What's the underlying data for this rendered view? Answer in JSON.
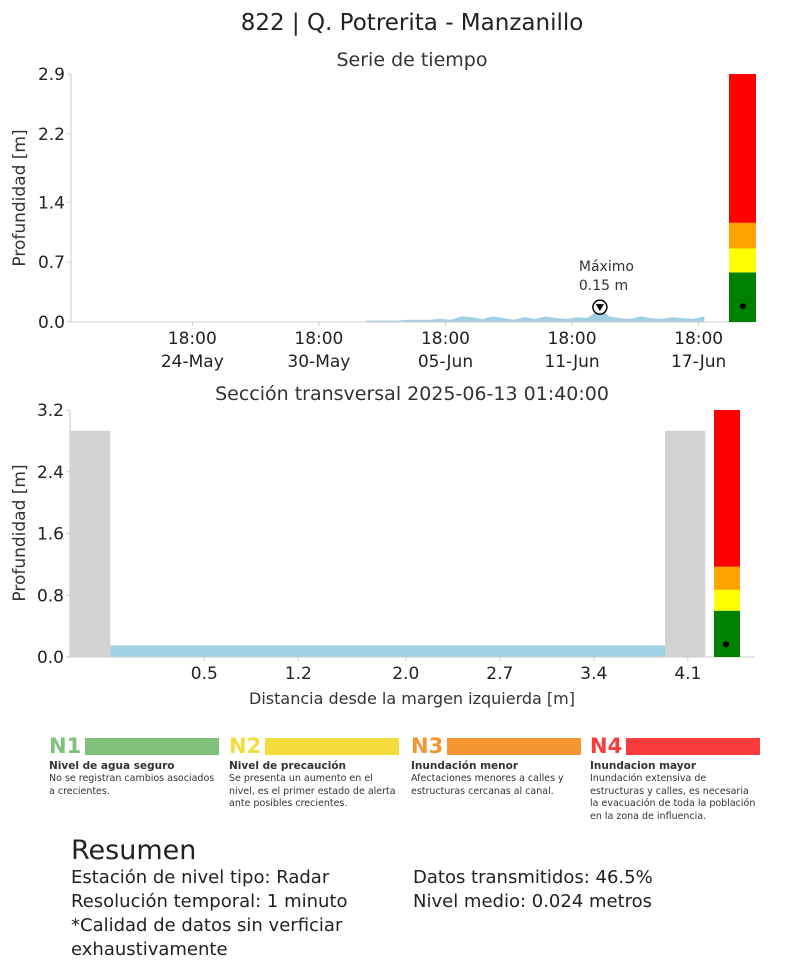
{
  "title": "822 | Q. Potrerita - Manzanillo",
  "chart_data": [
    {
      "type": "area",
      "title": "Serie de tiempo",
      "ylabel": "Profundidad [m]",
      "xlabel": "",
      "ylim": [
        0,
        2.9
      ],
      "yticks": [
        "0.0",
        "0.7",
        "1.4",
        "2.2",
        "2.9"
      ],
      "xticks": [
        {
          "time": "18:00",
          "date": "24-May"
        },
        {
          "time": "18:00",
          "date": "30-May"
        },
        {
          "time": "18:00",
          "date": "05-Jun"
        },
        {
          "time": "18:00",
          "date": "11-Jun"
        },
        {
          "time": "18:00",
          "date": "17-Jun"
        }
      ],
      "series": [
        {
          "color": "#9fd0e4",
          "x": [
            "2025-06-02 00:00",
            "2025-06-03 00:00",
            "2025-06-03 12:00",
            "2025-06-04 00:00",
            "2025-06-04 12:00",
            "2025-06-05 00:00",
            "2025-06-05 12:00",
            "2025-06-06 00:00",
            "2025-06-06 12:00",
            "2025-06-07 00:00",
            "2025-06-07 12:00",
            "2025-06-08 00:00",
            "2025-06-08 12:00",
            "2025-06-09 00:00",
            "2025-06-09 12:00",
            "2025-06-10 00:00",
            "2025-06-10 12:00",
            "2025-06-11 00:00",
            "2025-06-11 12:00",
            "2025-06-12 00:00",
            "2025-06-12 12:00",
            "2025-06-13 01:40",
            "2025-06-13 12:00",
            "2025-06-14 00:00",
            "2025-06-14 12:00",
            "2025-06-15 00:00",
            "2025-06-15 12:00",
            "2025-06-16 00:00",
            "2025-06-16 12:00",
            "2025-06-17 00:00",
            "2025-06-17 12:00",
            "2025-06-18 00:00"
          ],
          "values": [
            0.01,
            0.01,
            0.01,
            0.02,
            0.02,
            0.02,
            0.03,
            0.02,
            0.06,
            0.05,
            0.03,
            0.06,
            0.04,
            0.02,
            0.05,
            0.03,
            0.06,
            0.04,
            0.03,
            0.05,
            0.04,
            0.15,
            0.06,
            0.04,
            0.03,
            0.06,
            0.04,
            0.03,
            0.05,
            0.04,
            0.03,
            0.06
          ]
        }
      ],
      "annotation": {
        "label": "Máximo",
        "value_label": "0.15 m",
        "x": "2025-06-13 01:40",
        "y": 0.15
      },
      "level_bar": {
        "segments": [
          {
            "from": 0,
            "to": 0.58,
            "color": "#008000"
          },
          {
            "from": 0.58,
            "to": 0.86,
            "color": "#ffff00"
          },
          {
            "from": 0.86,
            "to": 1.16,
            "color": "#ffa500"
          },
          {
            "from": 1.16,
            "to": 2.9,
            "color": "#ff0000"
          }
        ],
        "marker": 0.15
      }
    },
    {
      "type": "area",
      "title": "Sección transversal 2025-06-13 01:40:00",
      "ylabel": "Profundidad [m]",
      "xlabel": "Distancia desde la margen izquierda [m]",
      "xlim": [
        -0.5,
        4.6
      ],
      "ylim": [
        0,
        3.2
      ],
      "xticks": [
        "0.5",
        "1.2",
        "2.0",
        "2.7",
        "3.4",
        "4.1"
      ],
      "yticks": [
        "0.0",
        "0.8",
        "1.6",
        "2.4",
        "3.2"
      ],
      "banks": {
        "color": "#d3d3d3",
        "height": 2.93,
        "left": [
          -0.5,
          -0.2
        ],
        "right": [
          3.93,
          4.23
        ]
      },
      "water": {
        "color": "#9fd0e4",
        "from": -0.2,
        "to": 3.93,
        "depth": 0.15
      },
      "level_bar": {
        "segments": [
          {
            "from": 0,
            "to": 0.6,
            "color": "#008000"
          },
          {
            "from": 0.6,
            "to": 0.87,
            "color": "#ffff00"
          },
          {
            "from": 0.87,
            "to": 1.17,
            "color": "#ffa500"
          },
          {
            "from": 1.17,
            "to": 3.2,
            "color": "#ff0000"
          }
        ],
        "marker": 0.15
      }
    }
  ],
  "levels": [
    {
      "code": "N1",
      "name": "Nivel de agua seguro",
      "desc": "No se registran cambios asociados a crecientes.",
      "color": "#7fc07a"
    },
    {
      "code": "N2",
      "name": "Nivel de precaución",
      "desc": "Se presenta un aumento en el nivel, es el primer estado de alerta ante posibles crecientes.",
      "color": "#f5dc3e"
    },
    {
      "code": "N3",
      "name": "Inundación menor",
      "desc": "Afectaciones menores a calles y estructuras cercanas al canal.",
      "color": "#f59632"
    },
    {
      "code": "N4",
      "name": "Inundacion mayor",
      "desc": "Inundación extensiva de estructuras y calles, es necesaria la evacuación de toda la población en la zona de influencia.",
      "color": "#fa3c3c"
    }
  ],
  "summary": {
    "heading": "Resumen",
    "station_type": "Estación de nivel tipo: Radar",
    "resolution": "Resolución temporal: 1 minuto",
    "quality_note": "*Calidad de datos sin verficiar exhaustivamente",
    "transmitted": "Datos transmitidos: 46.5%",
    "mean_level": "Nivel medio: 0.024 metros"
  }
}
